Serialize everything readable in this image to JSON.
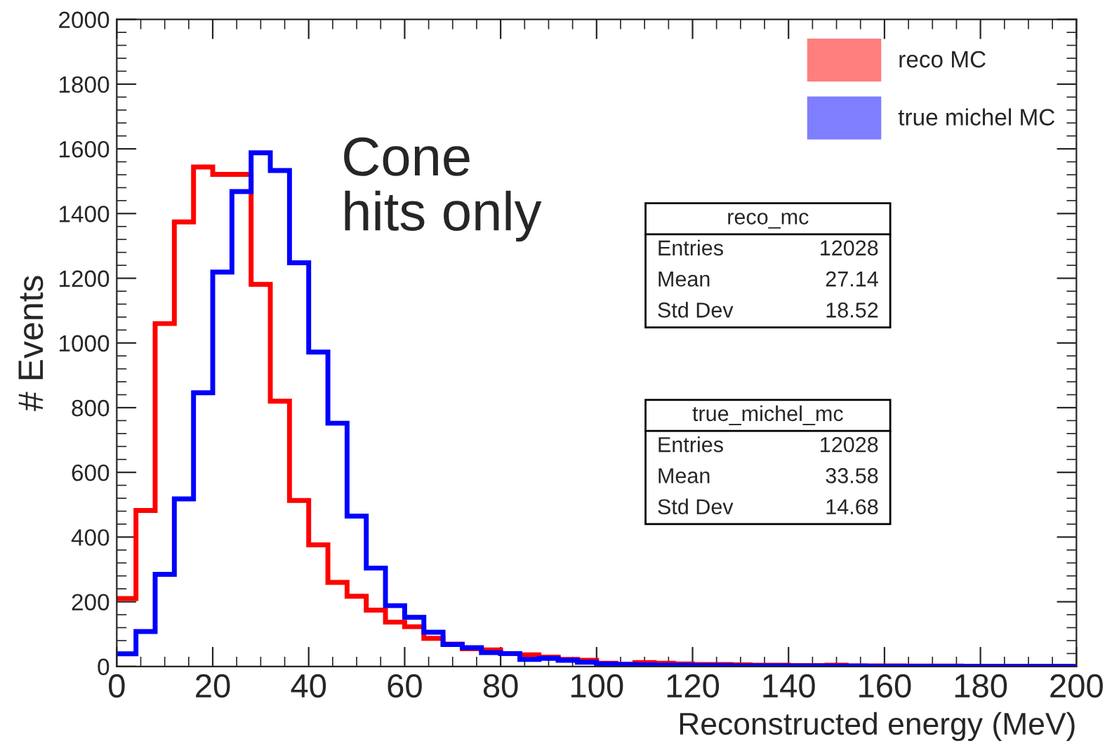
{
  "chart_data": {
    "type": "histogram",
    "xlabel": "Reconstructed energy (MeV)",
    "ylabel": "# Events",
    "bins": [
      0,
      4,
      8,
      12,
      16,
      20,
      24,
      28,
      32,
      36,
      40,
      44,
      48,
      52,
      56,
      60,
      64,
      68,
      72,
      76,
      80,
      84,
      88,
      92,
      96,
      100,
      104,
      108,
      112,
      116,
      120,
      124,
      128,
      132,
      136,
      140,
      144,
      148,
      152,
      156,
      160,
      164,
      168,
      172,
      176,
      180,
      184,
      188,
      192,
      196,
      200
    ],
    "series": [
      {
        "name": "reco MC",
        "color": "#ff0000",
        "values": [
          210,
          482,
          1060,
          1374,
          1544,
          1521,
          1521,
          1181,
          820,
          513,
          376,
          260,
          217,
          174,
          137,
          123,
          87,
          69,
          55,
          51,
          40,
          36,
          29,
          22,
          19,
          10,
          7,
          12,
          10,
          8,
          6,
          6,
          5,
          4,
          4,
          3,
          3,
          4,
          2,
          2,
          2,
          1,
          1,
          1,
          0,
          0,
          0,
          0,
          0,
          0
        ]
      },
      {
        "name": "true michel MC",
        "color": "#0000ff",
        "values": [
          39,
          108,
          285,
          518,
          846,
          1219,
          1468,
          1588,
          1533,
          1248,
          972,
          752,
          465,
          304,
          188,
          152,
          106,
          68,
          58,
          43,
          40,
          22,
          25,
          19,
          13,
          8,
          6,
          5,
          4,
          4,
          3,
          3,
          2,
          2,
          2,
          1,
          1,
          1,
          1,
          0,
          0,
          0,
          0,
          0,
          0,
          0,
          0,
          0,
          0,
          0
        ]
      }
    ],
    "xlim": [
      0,
      200
    ],
    "xticks": [
      0,
      20,
      40,
      60,
      80,
      100,
      120,
      140,
      160,
      180,
      200
    ],
    "ylim": [
      0,
      2000
    ],
    "yticks": [
      0,
      200,
      400,
      600,
      800,
      1000,
      1200,
      1400,
      1600,
      1800,
      2000
    ],
    "grid": false,
    "legend": "top right",
    "annotations": [
      "Cone\nhits only",
      "reco_mc\nEntries\t12028\nMean\t27.14\nStd Dev\t18.52",
      "true_michel_mc\nEntries\t12028\nMean\t33.58\nStd Dev\t14.68"
    ]
  }
}
